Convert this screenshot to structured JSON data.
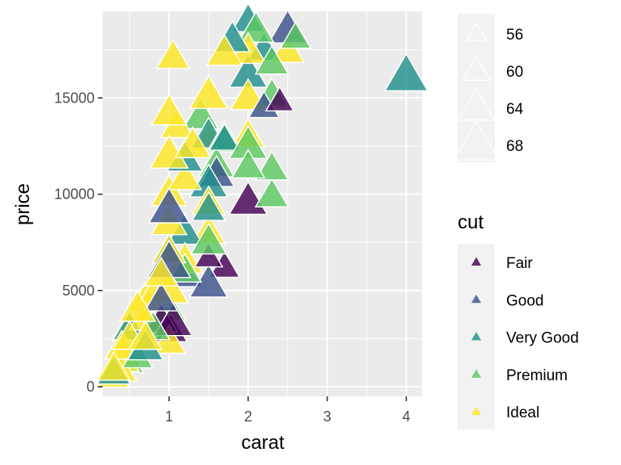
{
  "chart_data": {
    "type": "scatter",
    "title": "",
    "xlabel": "carat",
    "ylabel": "price",
    "xlim": [
      0.16,
      4.2
    ],
    "ylim": [
      -500,
      19500
    ],
    "x_ticks": [
      1,
      2,
      3,
      4
    ],
    "x_tick_labels": [
      "1",
      "2",
      "3",
      "4"
    ],
    "y_ticks": [
      0,
      5000,
      10000,
      15000
    ],
    "y_tick_labels": [
      "0",
      "5000",
      "10000",
      "15000"
    ],
    "grid": true,
    "marker": "triangle",
    "colors": {
      "Fair": "#440154",
      "Good": "#3B528B",
      "Very Good": "#21908C",
      "Premium": "#5DC863",
      "Ideal": "#FDE725",
      "panel": "#EBEBEB",
      "grid": "#FFFFFF",
      "point_stroke": "#FFFFFF"
    },
    "legends": [
      {
        "title": "",
        "kind": "size",
        "entries": [
          {
            "label": "56",
            "size": 56
          },
          {
            "label": "60",
            "size": 60
          },
          {
            "label": "64",
            "size": 64
          },
          {
            "label": "68",
            "size": 68
          }
        ]
      },
      {
        "title": "cut",
        "kind": "color",
        "entries": [
          {
            "label": "Fair",
            "color": "#440154"
          },
          {
            "label": "Good",
            "color": "#3B528B"
          },
          {
            "label": "Very Good",
            "color": "#21908C"
          },
          {
            "label": "Premium",
            "color": "#5DC863"
          },
          {
            "label": "Ideal",
            "color": "#FDE725"
          }
        ]
      }
    ],
    "series": [
      {
        "name": "Fair",
        "points": [
          {
            "x": 2.0,
            "y": 9600,
            "size": 62
          },
          {
            "x": 1.05,
            "y": 3300,
            "size": 62
          },
          {
            "x": 1.02,
            "y": 2900,
            "size": 60
          },
          {
            "x": 1.5,
            "y": 6700,
            "size": 58
          },
          {
            "x": 0.9,
            "y": 3400,
            "size": 60
          },
          {
            "x": 1.7,
            "y": 6200,
            "size": 59
          },
          {
            "x": 2.4,
            "y": 14800,
            "size": 58
          }
        ]
      },
      {
        "name": "Good",
        "points": [
          {
            "x": 2.5,
            "y": 18500,
            "size": 62
          },
          {
            "x": 1.0,
            "y": 6400,
            "size": 64
          },
          {
            "x": 1.0,
            "y": 9200,
            "size": 63
          },
          {
            "x": 1.5,
            "y": 5300,
            "size": 62
          },
          {
            "x": 0.9,
            "y": 4500,
            "size": 60
          },
          {
            "x": 1.6,
            "y": 11000,
            "size": 61
          },
          {
            "x": 1.2,
            "y": 5800,
            "size": 61
          },
          {
            "x": 2.2,
            "y": 14500,
            "size": 59
          }
        ]
      },
      {
        "name": "Very Good",
        "points": [
          {
            "x": 1.8,
            "y": 18000,
            "size": 61
          },
          {
            "x": 2.0,
            "y": 19000,
            "size": 60
          },
          {
            "x": 4.0,
            "y": 16100,
            "size": 64
          },
          {
            "x": 1.5,
            "y": 10500,
            "size": 62
          },
          {
            "x": 2.0,
            "y": 16200,
            "size": 62
          },
          {
            "x": 1.2,
            "y": 11800,
            "size": 61
          },
          {
            "x": 1.5,
            "y": 13000,
            "size": 61
          },
          {
            "x": 2.2,
            "y": 17500,
            "size": 60
          },
          {
            "x": 1.0,
            "y": 7000,
            "size": 60
          },
          {
            "x": 0.5,
            "y": 3000,
            "size": 60
          },
          {
            "x": 0.7,
            "y": 2000,
            "size": 61
          },
          {
            "x": 0.3,
            "y": 700,
            "size": 60
          },
          {
            "x": 1.2,
            "y": 8000,
            "size": 61
          },
          {
            "x": 1.5,
            "y": 9200,
            "size": 60
          },
          {
            "x": 1.7,
            "y": 12800,
            "size": 59
          }
        ]
      },
      {
        "name": "Premium",
        "points": [
          {
            "x": 2.6,
            "y": 18100,
            "size": 59
          },
          {
            "x": 2.3,
            "y": 16800,
            "size": 60
          },
          {
            "x": 2.3,
            "y": 9900,
            "size": 60
          },
          {
            "x": 2.0,
            "y": 12500,
            "size": 62
          },
          {
            "x": 1.7,
            "y": 12800,
            "size": 61
          },
          {
            "x": 1.4,
            "y": 14000,
            "size": 61
          },
          {
            "x": 2.3,
            "y": 11300,
            "size": 60
          },
          {
            "x": 2.1,
            "y": 18500,
            "size": 61
          },
          {
            "x": 1.5,
            "y": 7500,
            "size": 61
          },
          {
            "x": 1.2,
            "y": 6000,
            "size": 60
          },
          {
            "x": 1.0,
            "y": 4000,
            "size": 60
          },
          {
            "x": 0.8,
            "y": 3000,
            "size": 60
          },
          {
            "x": 0.6,
            "y": 1500,
            "size": 59
          },
          {
            "x": 2.3,
            "y": 15100,
            "size": 60
          },
          {
            "x": 2.0,
            "y": 11400,
            "size": 60
          },
          {
            "x": 1.6,
            "y": 11500,
            "size": 61
          },
          {
            "x": 0.5,
            "y": 1200,
            "size": 58
          }
        ]
      },
      {
        "name": "Ideal",
        "points": [
          {
            "x": 1.05,
            "y": 17100,
            "size": 60
          },
          {
            "x": 1.7,
            "y": 17300,
            "size": 61
          },
          {
            "x": 2.0,
            "y": 17400,
            "size": 61
          },
          {
            "x": 2.5,
            "y": 17400,
            "size": 60
          },
          {
            "x": 1.5,
            "y": 15100,
            "size": 62
          },
          {
            "x": 2.0,
            "y": 15000,
            "size": 61
          },
          {
            "x": 1.0,
            "y": 14200,
            "size": 61
          },
          {
            "x": 1.1,
            "y": 13500,
            "size": 60
          },
          {
            "x": 1.5,
            "y": 12800,
            "size": 60
          },
          {
            "x": 1.0,
            "y": 12000,
            "size": 62
          },
          {
            "x": 1.2,
            "y": 10800,
            "size": 60
          },
          {
            "x": 1.0,
            "y": 10000,
            "size": 61
          },
          {
            "x": 1.5,
            "y": 9500,
            "size": 60
          },
          {
            "x": 1.0,
            "y": 8500,
            "size": 61
          },
          {
            "x": 1.5,
            "y": 8000,
            "size": 60
          },
          {
            "x": 1.0,
            "y": 7000,
            "size": 60
          },
          {
            "x": 1.2,
            "y": 6500,
            "size": 61
          },
          {
            "x": 0.9,
            "y": 5800,
            "size": 60
          },
          {
            "x": 1.0,
            "y": 5000,
            "size": 62
          },
          {
            "x": 0.7,
            "y": 4500,
            "size": 60
          },
          {
            "x": 0.6,
            "y": 4000,
            "size": 61
          },
          {
            "x": 0.7,
            "y": 3500,
            "size": 60
          },
          {
            "x": 0.5,
            "y": 3000,
            "size": 61
          },
          {
            "x": 0.5,
            "y": 2500,
            "size": 60
          },
          {
            "x": 0.4,
            "y": 2000,
            "size": 60
          },
          {
            "x": 0.4,
            "y": 1400,
            "size": 61
          },
          {
            "x": 0.3,
            "y": 900,
            "size": 60
          },
          {
            "x": 0.3,
            "y": 500,
            "size": 59
          },
          {
            "x": 0.7,
            "y": 2500,
            "size": 60
          },
          {
            "x": 1.0,
            "y": 2300,
            "size": 60
          },
          {
            "x": 2.0,
            "y": 13000,
            "size": 60
          },
          {
            "x": 1.3,
            "y": 12500,
            "size": 61
          },
          {
            "x": 0.8,
            "y": 4700,
            "size": 60
          },
          {
            "x": 0.4,
            "y": 800,
            "size": 59
          }
        ]
      }
    ]
  }
}
